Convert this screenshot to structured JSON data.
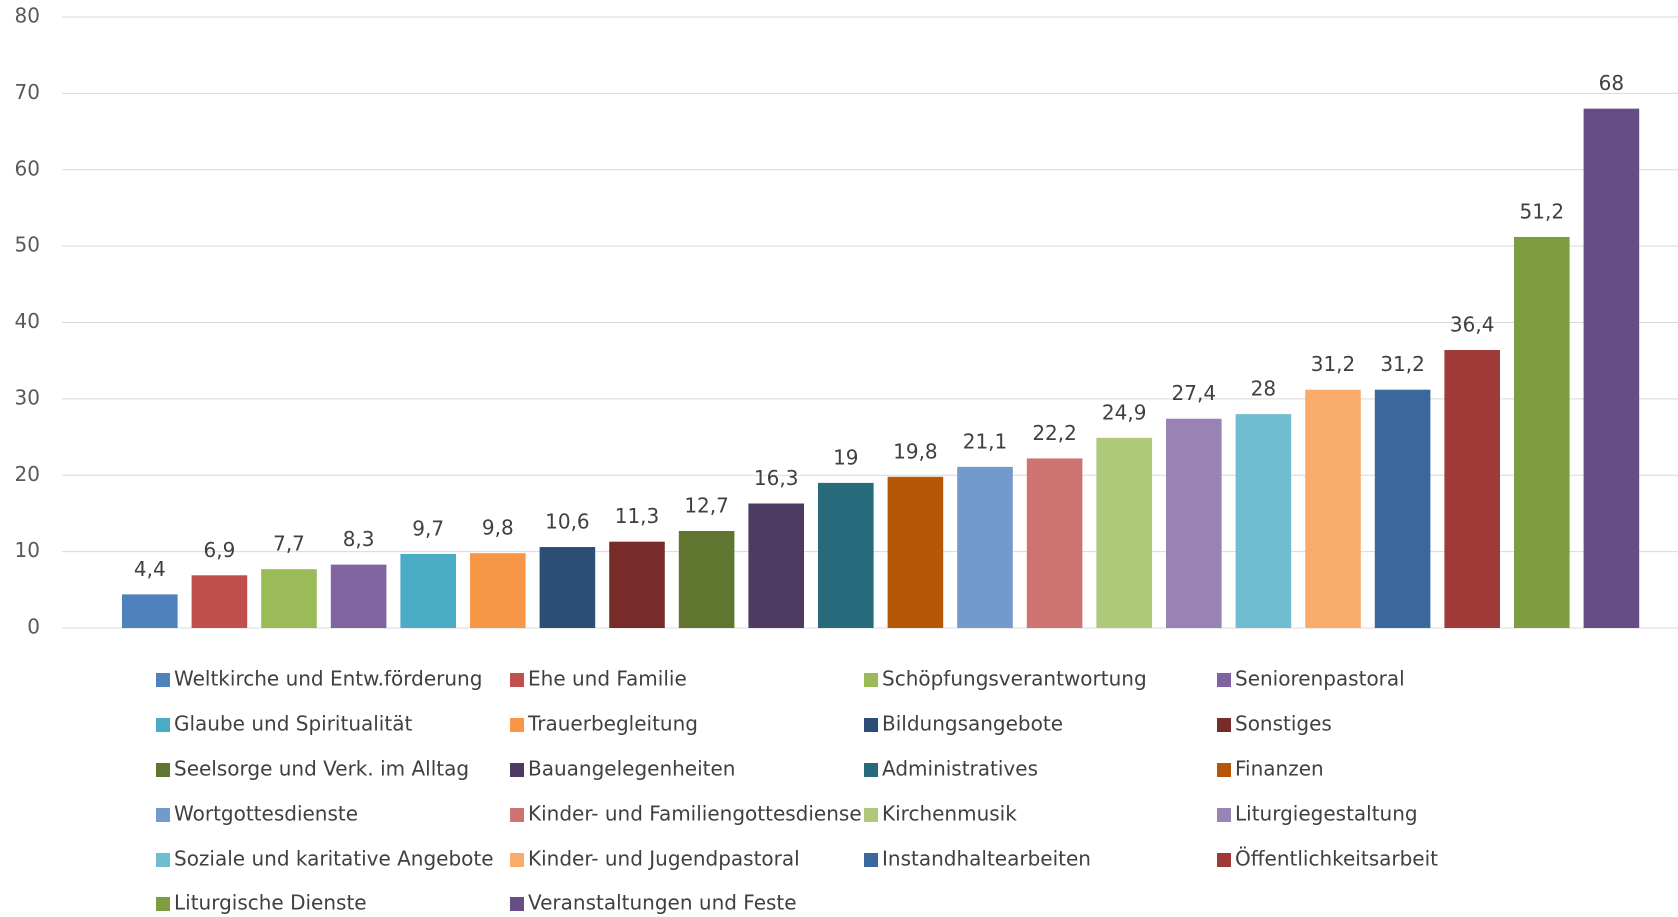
{
  "chart_data": {
    "type": "bar",
    "ylim": [
      0,
      80
    ],
    "yticks": [
      0,
      10,
      20,
      30,
      40,
      50,
      60,
      70,
      80
    ],
    "grid": true,
    "legend": "bottom",
    "series": [
      {
        "name": "Weltkirche und Entw.förderung",
        "color": "#4f81bd",
        "values": [
          4.4
        ],
        "value_labels": [
          "4,4"
        ]
      },
      {
        "name": "Ehe und Familie",
        "color": "#c0504d",
        "values": [
          6.9
        ],
        "value_labels": [
          "6,9"
        ]
      },
      {
        "name": "Schöpfungsverantwortung",
        "color": "#9bbb59",
        "values": [
          7.7
        ],
        "value_labels": [
          "7,7"
        ]
      },
      {
        "name": "Seniorenpastoral",
        "color": "#8064a2",
        "values": [
          8.3
        ],
        "value_labels": [
          "8,3"
        ]
      },
      {
        "name": "Glaube und Spiritualität",
        "color": "#4bacc6",
        "values": [
          9.7
        ],
        "value_labels": [
          "9,7"
        ]
      },
      {
        "name": "Trauerbegleitung",
        "color": "#f79646",
        "values": [
          9.8
        ],
        "value_labels": [
          "9,8"
        ]
      },
      {
        "name": "Bildungsangebote",
        "color": "#2c4d75",
        "values": [
          10.6
        ],
        "value_labels": [
          "10,6"
        ]
      },
      {
        "name": "Sonstiges",
        "color": "#772c2a",
        "values": [
          11.3
        ],
        "value_labels": [
          "11,3"
        ]
      },
      {
        "name": "Seelsorge und Verk. im Alltag",
        "color": "#5f7530",
        "values": [
          12.7
        ],
        "value_labels": [
          "12,7"
        ]
      },
      {
        "name": "Bauangelegenheiten",
        "color": "#4d3b62",
        "values": [
          16.3
        ],
        "value_labels": [
          "16,3"
        ]
      },
      {
        "name": "Administratives",
        "color": "#276a7c",
        "values": [
          19
        ]
      },
      {
        "name": "Finanzen",
        "color": "#b65708",
        "values": [
          19.8
        ],
        "value_labels": [
          "19,8"
        ]
      },
      {
        "name": "Wortgottesdienste",
        "color": "#729aca",
        "values": [
          21.1
        ],
        "value_labels": [
          "21,1"
        ]
      },
      {
        "name": "Kinder- und Familiengottesdiense",
        "color": "#cd7371",
        "values": [
          22.2
        ],
        "value_labels": [
          "22,2"
        ]
      },
      {
        "name": "Kirchenmusik",
        "color": "#afc97a",
        "values": [
          24.9
        ],
        "value_labels": [
          "24,9"
        ]
      },
      {
        "name": "Liturgiegestaltung",
        "color": "#9983b5",
        "values": [
          27.4
        ],
        "value_labels": [
          "27,4"
        ]
      },
      {
        "name": "Soziale und karitative Angebote",
        "color": "#6fbdd1",
        "values": [
          28
        ]
      },
      {
        "name": "Kinder- und Jugendpastoral",
        "color": "#f9ab6b",
        "values": [
          31.2
        ],
        "value_labels": [
          "31,2"
        ]
      },
      {
        "name": "Instandhaltearbeiten",
        "color": "#3a679c",
        "values": [
          31.2
        ],
        "value_labels": [
          "31,2"
        ]
      },
      {
        "name": "Öffentlichkeitsarbeit",
        "color": "#9e3b38",
        "values": [
          36.4
        ],
        "value_labels": [
          "36,4"
        ]
      },
      {
        "name": "Liturgische Dienste",
        "color": "#7e9d40",
        "values": [
          51.2
        ],
        "value_labels": [
          "51,2"
        ]
      },
      {
        "name": "Veranstaltungen und Feste",
        "color": "#664d86",
        "values": [
          68
        ]
      }
    ]
  }
}
